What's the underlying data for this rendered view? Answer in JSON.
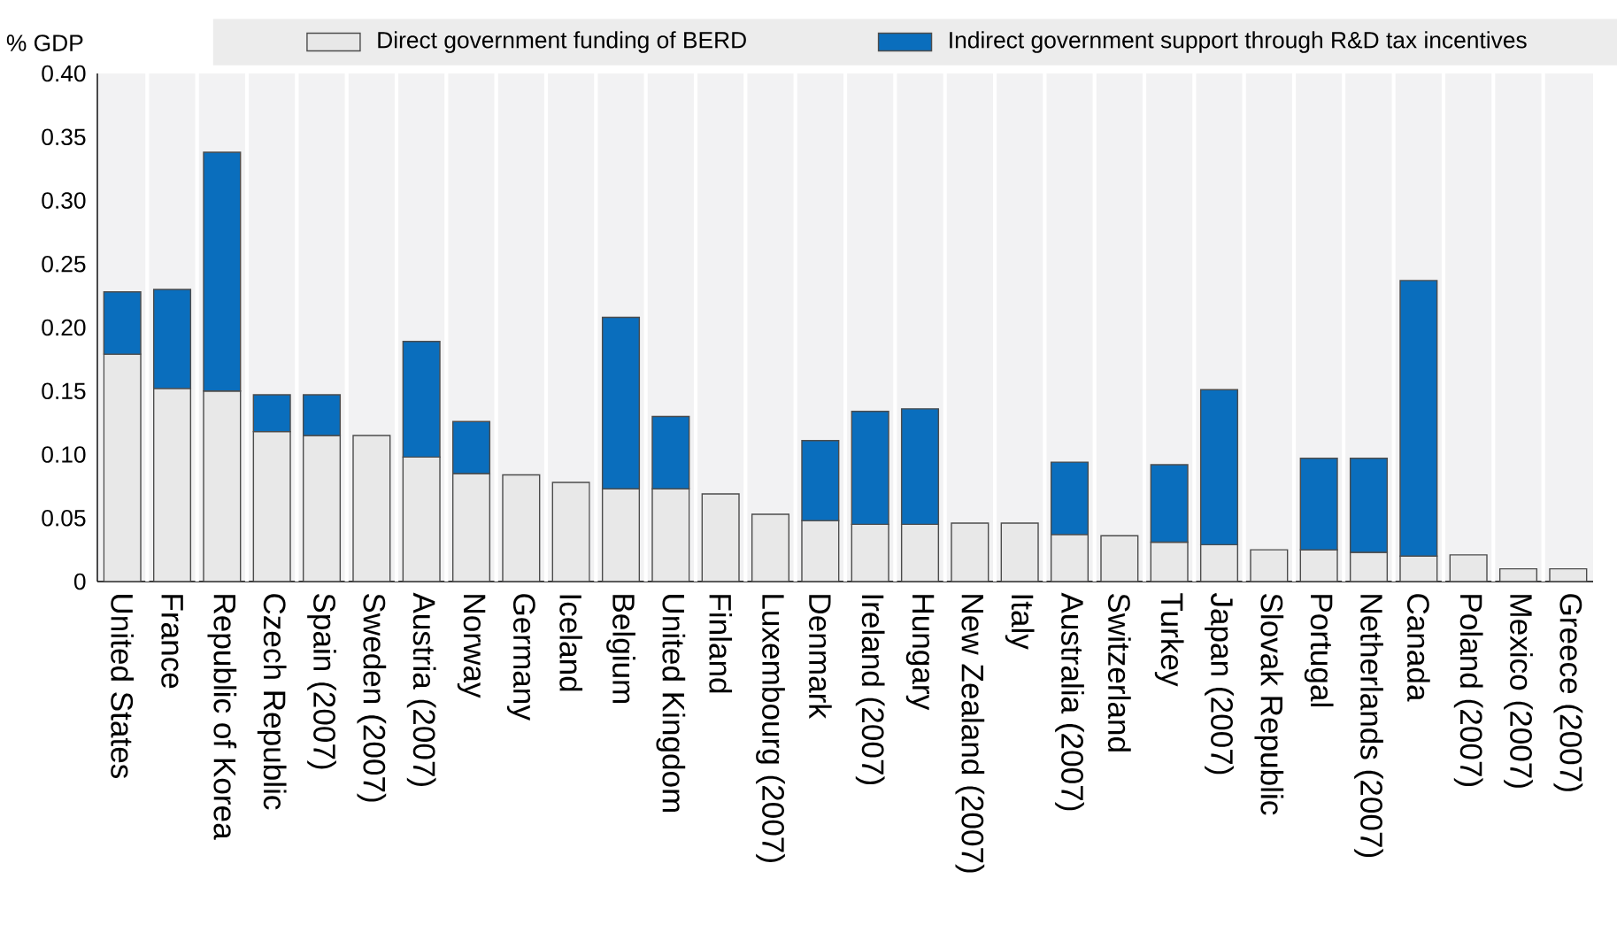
{
  "chart_data": {
    "type": "bar",
    "stacked": true,
    "ylabel": "% GDP",
    "legend": "top",
    "categories": [
      "United States",
      "France",
      "Republic of Korea",
      "Czech Republic",
      "Spain (2007)",
      "Sweden (2007)",
      "Austria (2007)",
      "Norway",
      "Germany",
      "Iceland",
      "Belgium",
      "United Kingdom",
      "Finland",
      "Luxembourg (2007)",
      "Denmark",
      "Ireland (2007)",
      "Hungary",
      "New Zealand (2007)",
      "Italy",
      "Australia (2007)",
      "Switzerland",
      "Turkey",
      "Japan (2007)",
      "Slovak Republic",
      "Portugal",
      "Netherlands (2007)",
      "Canada",
      "Poland (2007)",
      "Mexico (2007)",
      "Greece (2007)"
    ],
    "series": [
      {
        "name": "Direct government funding of BERD",
        "color": "#e8e8e8",
        "values": [
          0.179,
          0.152,
          0.15,
          0.118,
          0.115,
          0.115,
          0.098,
          0.085,
          0.084,
          0.078,
          0.073,
          0.073,
          0.069,
          0.053,
          0.048,
          0.045,
          0.045,
          0.046,
          0.046,
          0.037,
          0.036,
          0.031,
          0.029,
          0.025,
          0.025,
          0.023,
          0.02,
          0.021,
          0.01,
          0.01
        ]
      },
      {
        "name": "Indirect government support through R&D tax incentives",
        "color": "#0a6ebd",
        "values": [
          0.049,
          0.078,
          0.188,
          0.029,
          0.032,
          null,
          0.091,
          0.041,
          null,
          null,
          0.135,
          0.057,
          null,
          null,
          0.063,
          0.089,
          0.091,
          null,
          null,
          0.057,
          null,
          0.061,
          0.122,
          null,
          0.072,
          0.074,
          0.217,
          null,
          null,
          null
        ]
      }
    ],
    "ylim": [
      0,
      0.4
    ],
    "yticks": [
      0,
      {
        "value": 0.05,
        "label": "0.05"
      },
      {
        "value": 0.1,
        "label": "0.10"
      },
      {
        "value": 0.15,
        "label": "0.15"
      },
      {
        "value": 0.2,
        "label": "0.20"
      },
      {
        "value": 0.25,
        "label": "0.25"
      },
      {
        "value": 0.3,
        "label": "0.30"
      },
      {
        "value": 0.35,
        "label": "0.35"
      },
      {
        "value": 0.4,
        "label": "0.40"
      }
    ]
  }
}
